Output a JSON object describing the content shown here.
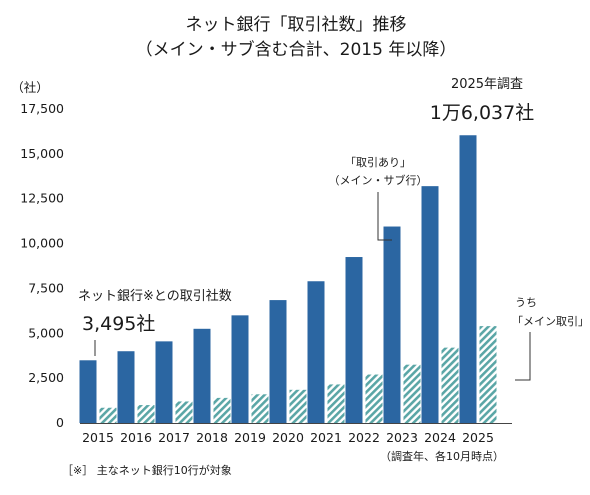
{
  "chart_data": {
    "type": "bar",
    "title_lines": [
      "ネット銀行「取引社数」推移",
      "（メイン・サブ含む合計、2015 年以降）"
    ],
    "y_unit_label": "（社）",
    "ylim": [
      0,
      17500
    ],
    "y_ticks": [
      0,
      2500,
      5000,
      7500,
      10000,
      12500,
      15000,
      17500
    ],
    "y_tick_labels": [
      "0",
      "2,500",
      "5,000",
      "7,500",
      "10,000",
      "12,500",
      "15,000",
      "17,500"
    ],
    "categories": [
      "2015",
      "2016",
      "2017",
      "2018",
      "2019",
      "2020",
      "2021",
      "2022",
      "2023",
      "2024",
      "2025"
    ],
    "series": [
      {
        "name": "取引あり（メイン・サブ行）",
        "color": "#2b66a2",
        "values": [
          3495,
          4000,
          4550,
          5250,
          6000,
          6850,
          7900,
          9250,
          10950,
          13200,
          16037
        ]
      },
      {
        "name": "うち「メイン取引」",
        "color": "#5aa6a6",
        "values": [
          850,
          1000,
          1200,
          1400,
          1600,
          1850,
          2150,
          2700,
          3250,
          4200,
          5400
        ]
      }
    ],
    "annotations": {
      "label_2015_line1": "ネット銀行※との取引社数",
      "label_2015_value": "3,495社",
      "label_2025_line1": "2025年調査",
      "label_2025_value": "1万6,037社",
      "label_total_line1": "「取引あり」",
      "label_total_line2": "（メイン・サブ行）",
      "label_main_line1": "うち",
      "label_main_line2": "「メイン取引」",
      "survey_note": "（調査年、各10月時点）",
      "footnote": "［※］ 主なネット銀行10行が対象"
    },
    "grid": false,
    "legend": "none"
  }
}
